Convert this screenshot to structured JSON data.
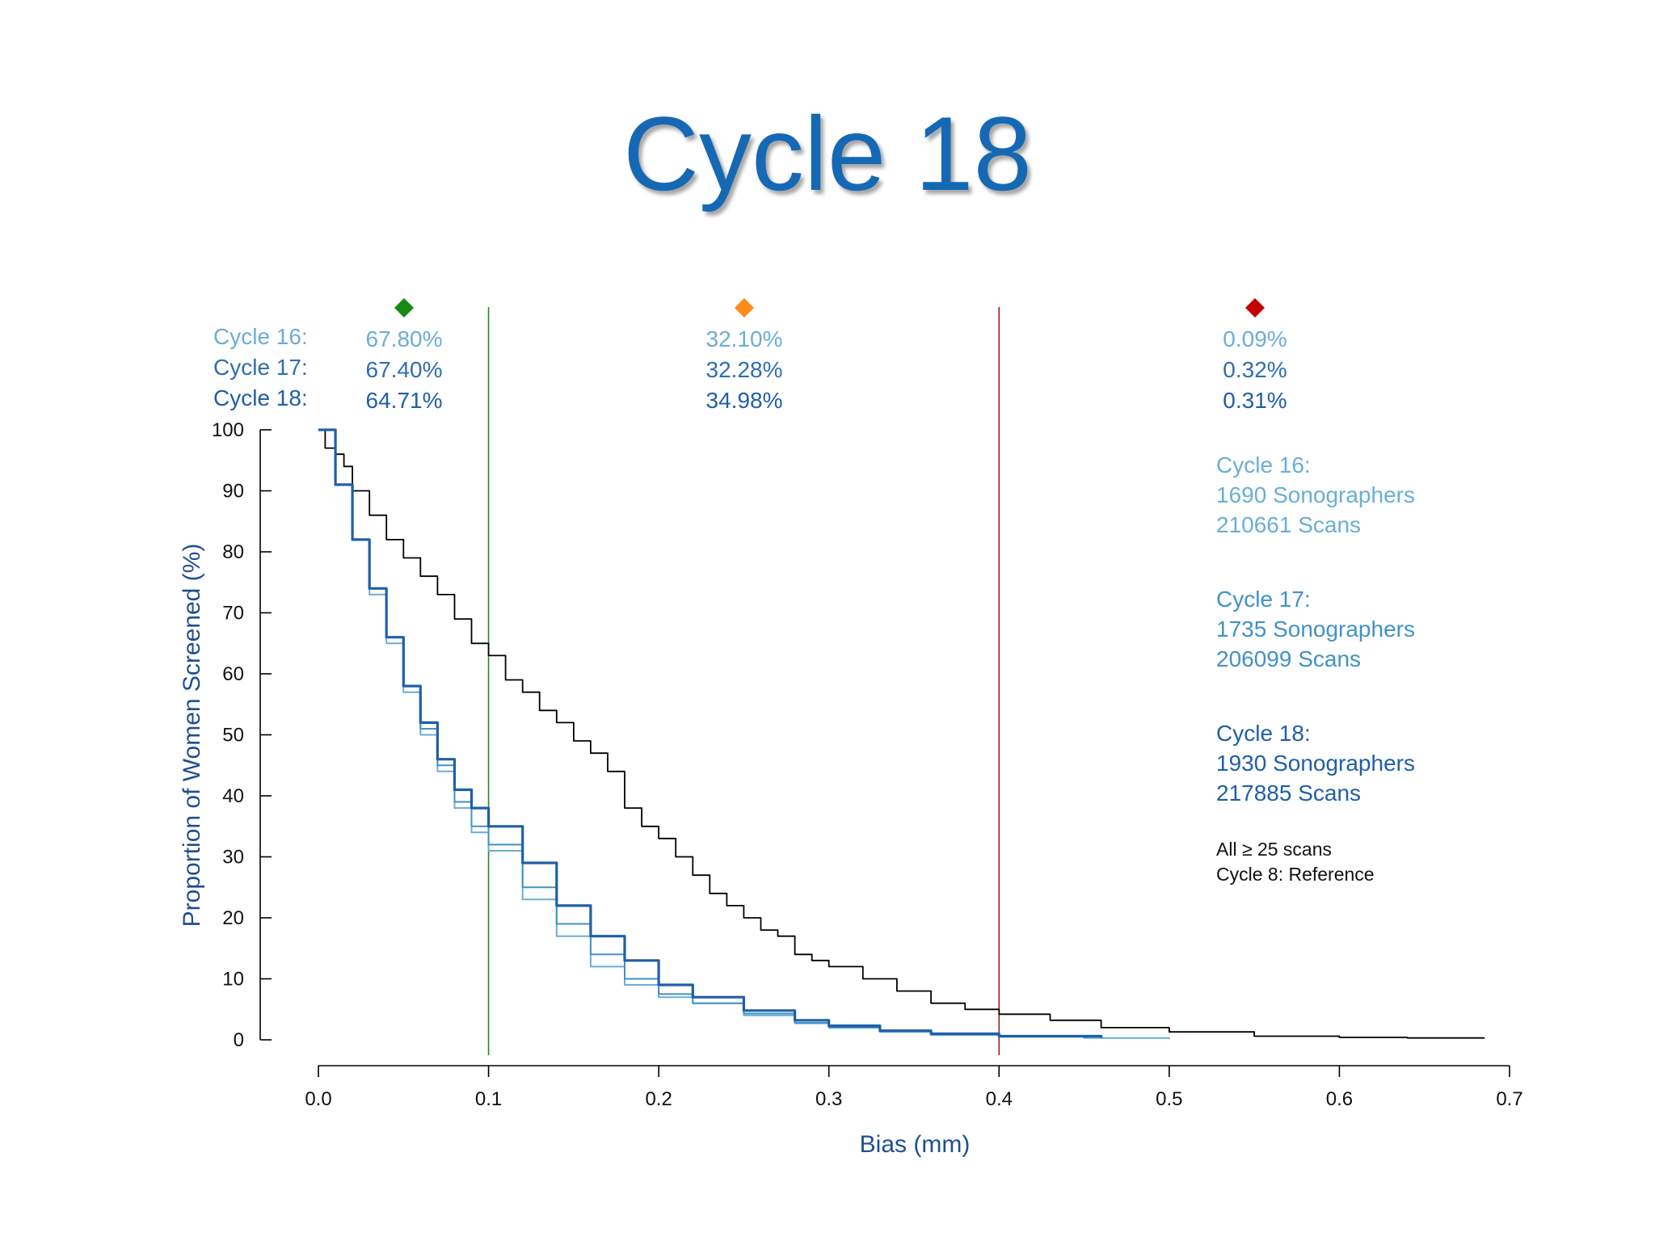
{
  "title": "Cycle 18",
  "colors": {
    "cycle16": "#6baed6",
    "cycle17": "#4292c6",
    "cycle18": "#1f5fa8",
    "reference": "#000000",
    "green_marker": "#138a13",
    "orange_marker": "#ff8c1a",
    "red_marker": "#c40000",
    "green_line": "#1f8f1f",
    "red_line": "#9e1b1b"
  },
  "markers": [
    {
      "name": "green-diamond",
      "color": "#138a13"
    },
    {
      "name": "orange-diamond",
      "color": "#ff8c1a"
    },
    {
      "name": "red-diamond",
      "color": "#c40000"
    }
  ],
  "percent_table": {
    "rows": [
      {
        "label": "Cycle 16:",
        "values": [
          "67.80%",
          "32.10%",
          "0.09%"
        ]
      },
      {
        "label": "Cycle 17:",
        "values": [
          "67.40%",
          "32.28%",
          "0.32%"
        ]
      },
      {
        "label": "Cycle 18:",
        "values": [
          "64.71%",
          "34.98%",
          "0.31%"
        ]
      }
    ]
  },
  "legend_info": [
    {
      "cycle": "Cycle 16:",
      "sonographers": "1690 Sonographers",
      "scans": "210661 Scans"
    },
    {
      "cycle": "Cycle 17:",
      "sonographers": "1735 Sonographers",
      "scans": "206099 Scans"
    },
    {
      "cycle": "Cycle 18:",
      "sonographers": "1930 Sonographers",
      "scans": "217885 Scans"
    }
  ],
  "notes": [
    "All ≥ 25 scans",
    "Cycle 8: Reference"
  ],
  "chart_data": {
    "type": "line",
    "title": "",
    "xlabel": "Bias (mm)",
    "ylabel": "Proportion of Women Screened (%)",
    "xlim": [
      0.0,
      0.7
    ],
    "ylim": [
      0,
      100
    ],
    "x_ticks": [
      "0.0",
      "0.1",
      "0.2",
      "0.3",
      "0.4",
      "0.5",
      "0.6",
      "0.7"
    ],
    "y_ticks": [
      "0",
      "10",
      "20",
      "30",
      "40",
      "50",
      "60",
      "70",
      "80",
      "90",
      "100"
    ],
    "vertical_lines": [
      {
        "x": 0.1,
        "color": "#1f8f1f"
      },
      {
        "x": 0.4,
        "color": "#9e1b1b"
      }
    ],
    "series": [
      {
        "name": "Cycle 8: Reference",
        "color": "#000000",
        "x": [
          0.0,
          0.004,
          0.01,
          0.015,
          0.02,
          0.03,
          0.04,
          0.05,
          0.06,
          0.07,
          0.08,
          0.09,
          0.1,
          0.11,
          0.12,
          0.13,
          0.14,
          0.15,
          0.16,
          0.17,
          0.18,
          0.19,
          0.2,
          0.21,
          0.22,
          0.23,
          0.24,
          0.25,
          0.26,
          0.27,
          0.28,
          0.29,
          0.3,
          0.32,
          0.34,
          0.36,
          0.38,
          0.4,
          0.43,
          0.46,
          0.5,
          0.55,
          0.6,
          0.64,
          0.685
        ],
        "y": [
          100,
          97,
          96,
          94,
          90,
          86,
          82,
          79,
          76,
          73,
          69,
          65,
          63,
          59,
          57,
          54,
          52,
          49,
          47,
          44,
          38,
          35,
          33,
          30,
          27,
          24,
          22,
          20,
          18,
          17,
          14,
          13,
          12,
          10,
          8,
          6,
          5,
          4.2,
          3.2,
          2,
          1.3,
          0.6,
          0.4,
          0.3,
          0.2
        ]
      },
      {
        "name": "Cycle 16",
        "color": "#6baed6",
        "x": [
          0.0,
          0.01,
          0.02,
          0.03,
          0.04,
          0.05,
          0.06,
          0.07,
          0.08,
          0.09,
          0.1,
          0.12,
          0.14,
          0.16,
          0.18,
          0.2,
          0.22,
          0.25,
          0.28,
          0.3,
          0.33,
          0.36,
          0.4,
          0.45,
          0.5
        ],
        "y": [
          100,
          91,
          82,
          73,
          65,
          57,
          50,
          44,
          38,
          34,
          31,
          23,
          17,
          12,
          9,
          7,
          6,
          4,
          2.7,
          2,
          1.3,
          0.8,
          0.5,
          0.3,
          0.1
        ]
      },
      {
        "name": "Cycle 17",
        "color": "#4292c6",
        "x": [
          0.0,
          0.01,
          0.02,
          0.03,
          0.04,
          0.05,
          0.06,
          0.07,
          0.08,
          0.09,
          0.1,
          0.12,
          0.14,
          0.16,
          0.18,
          0.2,
          0.22,
          0.25,
          0.28,
          0.3,
          0.33,
          0.36,
          0.4,
          0.45
        ],
        "y": [
          100,
          91,
          82,
          74,
          66,
          58,
          51,
          45,
          39,
          35,
          32,
          25,
          19,
          14,
          10,
          7.5,
          6,
          4.3,
          2.8,
          2,
          1.4,
          0.9,
          0.6,
          0.3
        ]
      },
      {
        "name": "Cycle 18",
        "color": "#1f5fa8",
        "x": [
          0.0,
          0.01,
          0.02,
          0.03,
          0.04,
          0.05,
          0.06,
          0.07,
          0.08,
          0.09,
          0.1,
          0.12,
          0.14,
          0.16,
          0.18,
          0.2,
          0.22,
          0.25,
          0.28,
          0.3,
          0.33,
          0.36,
          0.4,
          0.46
        ],
        "y": [
          100,
          91,
          82,
          74,
          66,
          58,
          52,
          46,
          41,
          38,
          35,
          29,
          22,
          17,
          13,
          9,
          7,
          4.8,
          3.2,
          2.3,
          1.5,
          1,
          0.6,
          0.3
        ]
      }
    ]
  }
}
